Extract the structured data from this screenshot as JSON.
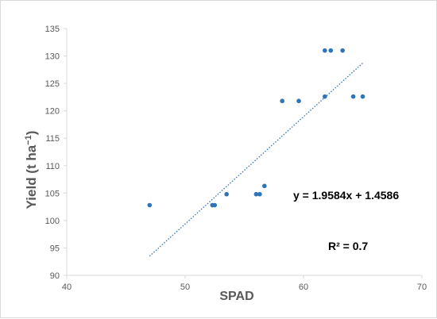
{
  "chart_data": {
    "type": "scatter",
    "title": "",
    "xlabel": "SPAD",
    "ylabel_main": "Yield (t ha",
    "ylabel_sup": "−1",
    "ylabel_close": ")",
    "xlim": [
      40,
      70
    ],
    "ylim": [
      90,
      135
    ],
    "xticks": [
      40,
      50,
      60,
      70
    ],
    "yticks": [
      90,
      95,
      100,
      105,
      110,
      115,
      120,
      125,
      130,
      135
    ],
    "series": [
      {
        "points": [
          {
            "x": 47.0,
            "y": 102.8
          },
          {
            "x": 52.3,
            "y": 102.8
          },
          {
            "x": 52.5,
            "y": 102.8
          },
          {
            "x": 53.5,
            "y": 104.8
          },
          {
            "x": 56.0,
            "y": 104.8
          },
          {
            "x": 56.3,
            "y": 104.8
          },
          {
            "x": 56.7,
            "y": 106.3
          },
          {
            "x": 58.2,
            "y": 121.8
          },
          {
            "x": 59.6,
            "y": 121.8
          },
          {
            "x": 61.8,
            "y": 122.6
          },
          {
            "x": 61.8,
            "y": 131.0
          },
          {
            "x": 62.3,
            "y": 131.0
          },
          {
            "x": 63.3,
            "y": 131.0
          },
          {
            "x": 64.2,
            "y": 122.6
          },
          {
            "x": 65.0,
            "y": 122.6
          }
        ]
      }
    ],
    "trendline": {
      "x_start": 47.0,
      "y_start": 93.5,
      "x_end": 65.0,
      "y_end": 128.7
    },
    "equation": "y = 1.9584x + 1.4586",
    "r_squared": "R² = 0.7",
    "grid": false,
    "colors": {
      "points": "#2e75b6",
      "trendline": "#2e75b6",
      "axis": "#d9d9d9",
      "text": "#595959"
    }
  }
}
